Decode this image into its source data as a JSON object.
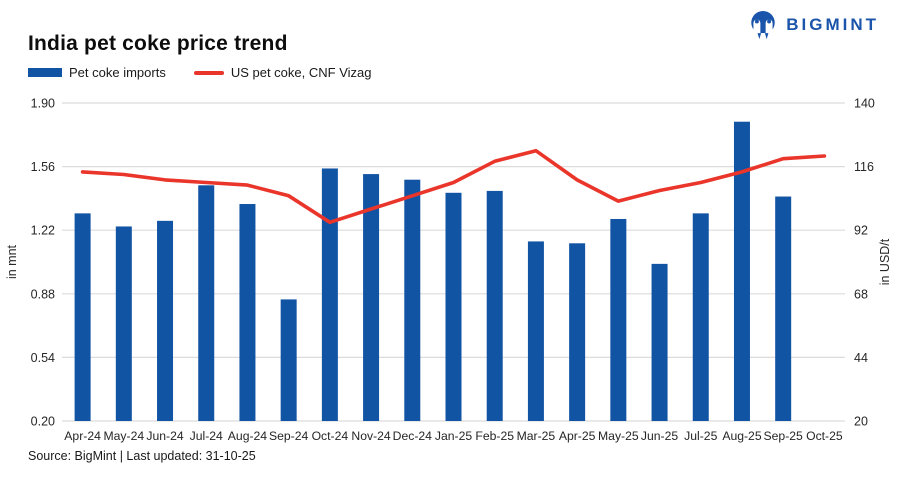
{
  "header": {
    "title": "India pet coke price trend"
  },
  "logo": {
    "text": "BIGMINT",
    "icon": "bigmint-owl-mark"
  },
  "legend": {
    "items": [
      {
        "label": "Pet coke imports",
        "type": "bar"
      },
      {
        "label": "US pet coke, CNF Vizag",
        "type": "line"
      }
    ]
  },
  "footer": {
    "source": "Source: BigMint | Last updated: 31-10-25"
  },
  "colors": {
    "bar": "#1254A4",
    "line": "#EA352B",
    "logo": "#1B55AB",
    "grid": "#DCDCDC"
  },
  "chart_data": {
    "type": "bar+line",
    "title": "India pet coke price trend",
    "categories": [
      "Apr-24",
      "May-24",
      "Jun-24",
      "Jul-24",
      "Aug-24",
      "Sep-24",
      "Oct-24",
      "Nov-24",
      "Dec-24",
      "Jan-25",
      "Feb-25",
      "Mar-25",
      "Apr-25",
      "May-25",
      "Jun-25",
      "Jul-25",
      "Aug-25",
      "Sep-25",
      "Oct-25"
    ],
    "series": [
      {
        "name": "Pet coke imports",
        "type": "bar",
        "axis": "left",
        "values": [
          1.31,
          1.24,
          1.27,
          1.46,
          1.36,
          0.85,
          1.55,
          1.52,
          1.49,
          1.42,
          1.43,
          1.16,
          1.15,
          1.28,
          1.04,
          1.31,
          1.8,
          1.4,
          null
        ]
      },
      {
        "name": "US pet coke, CNF Vizag",
        "type": "line",
        "axis": "right",
        "values": [
          114,
          113,
          111,
          110,
          109,
          105,
          95,
          100,
          105,
          110,
          118,
          122,
          111,
          103,
          107,
          110,
          114,
          119,
          120
        ]
      }
    ],
    "left_axis": {
      "label": "in mnt",
      "min": 0.2,
      "max": 1.9,
      "tick_labels": [
        "1.90",
        "1.56",
        "1.22",
        "0.88",
        "0.54",
        "0.20"
      ],
      "tick_values": [
        1.9,
        1.56,
        1.22,
        0.88,
        0.54,
        0.2
      ]
    },
    "right_axis": {
      "label": "in USD/t",
      "min": 20,
      "max": 140,
      "tick_labels": [
        "140",
        "116",
        "92",
        "68",
        "44",
        "20"
      ],
      "tick_values": [
        140,
        116,
        92,
        68,
        44,
        20
      ]
    },
    "grid": true,
    "legend_position": "top-left"
  }
}
